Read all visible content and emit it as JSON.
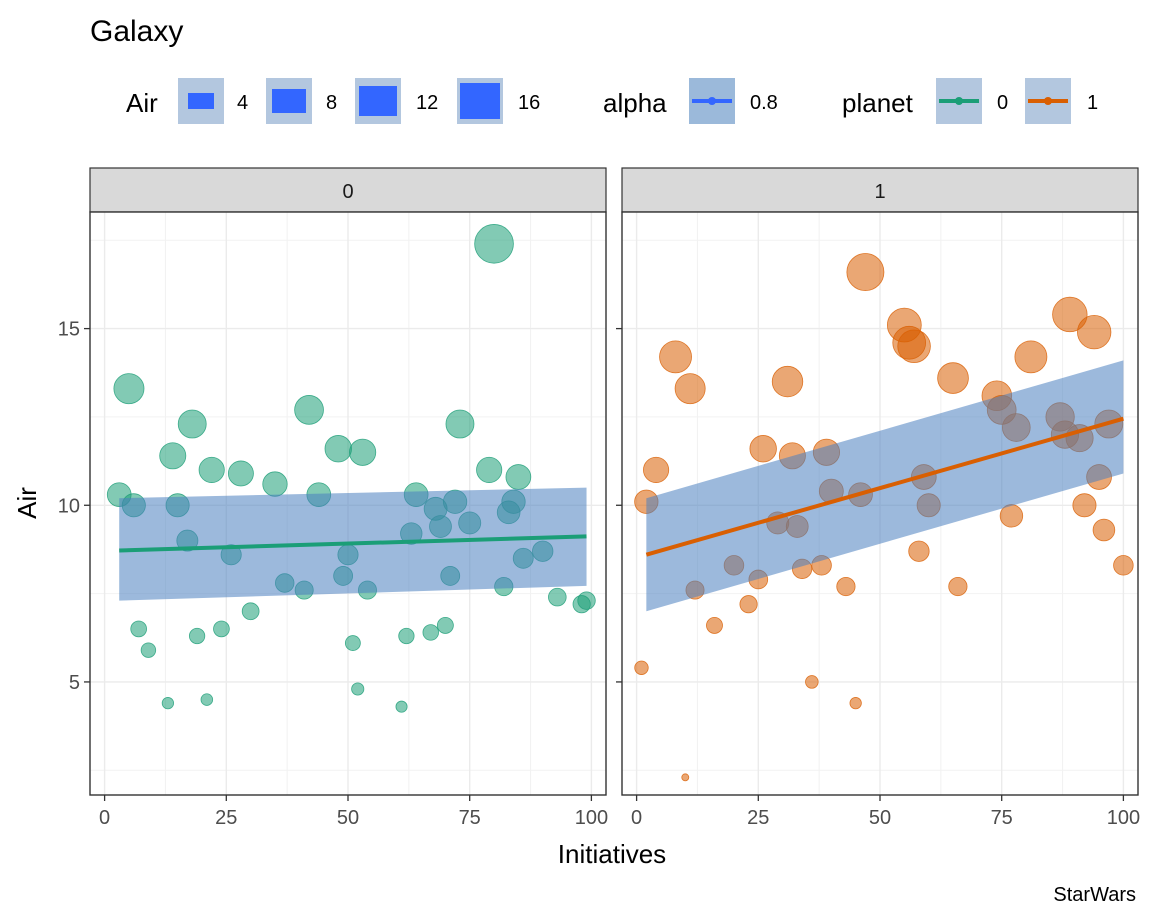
{
  "chart_data": {
    "type": "scatter",
    "title": "Galaxy",
    "caption": "StarWars",
    "xlabel": "Initiatives",
    "ylabel": "Air",
    "xlim": [
      -3,
      103
    ],
    "ylim": [
      1.8,
      18.3
    ],
    "xticks": [
      0,
      25,
      50,
      75,
      100
    ],
    "yticks": [
      5,
      10,
      15
    ],
    "grid": true,
    "legend_position": "top",
    "colors": {
      "planet_0": "#1b9e77",
      "planet_1": "#d95f02",
      "ribbon": "#4a7fbf",
      "size_key": "#3366ff"
    },
    "legend": {
      "size": {
        "title": "Air",
        "labels": [
          "4",
          "8",
          "12",
          "16"
        ]
      },
      "alpha": {
        "title": "alpha",
        "labels": [
          "0.8"
        ]
      },
      "color": {
        "title": "planet",
        "labels": [
          "0",
          "1"
        ]
      }
    },
    "panels": [
      {
        "strip": "0",
        "color": "#1b9e77",
        "fit": {
          "x": [
            3,
            99
          ],
          "y": [
            8.72,
            9.12
          ],
          "lower": [
            7.3,
            7.72
          ],
          "upper": [
            10.2,
            10.5
          ]
        },
        "points": [
          {
            "x": 3,
            "y": 10.3
          },
          {
            "x": 5,
            "y": 13.3
          },
          {
            "x": 6,
            "y": 10.0
          },
          {
            "x": 7,
            "y": 6.5
          },
          {
            "x": 9,
            "y": 5.9
          },
          {
            "x": 13,
            "y": 4.4
          },
          {
            "x": 14,
            "y": 11.4
          },
          {
            "x": 15,
            "y": 10.0
          },
          {
            "x": 17,
            "y": 9.0
          },
          {
            "x": 18,
            "y": 12.3
          },
          {
            "x": 19,
            "y": 6.3
          },
          {
            "x": 21,
            "y": 4.5
          },
          {
            "x": 22,
            "y": 11.0
          },
          {
            "x": 24,
            "y": 6.5
          },
          {
            "x": 26,
            "y": 8.6
          },
          {
            "x": 28,
            "y": 10.9
          },
          {
            "x": 30,
            "y": 7.0
          },
          {
            "x": 35,
            "y": 10.6
          },
          {
            "x": 37,
            "y": 7.8
          },
          {
            "x": 41,
            "y": 7.6
          },
          {
            "x": 42,
            "y": 12.7
          },
          {
            "x": 44,
            "y": 10.3
          },
          {
            "x": 48,
            "y": 11.6
          },
          {
            "x": 49,
            "y": 8.0
          },
          {
            "x": 50,
            "y": 8.6
          },
          {
            "x": 51,
            "y": 6.1
          },
          {
            "x": 52,
            "y": 4.8
          },
          {
            "x": 53,
            "y": 11.5
          },
          {
            "x": 54,
            "y": 7.6
          },
          {
            "x": 61,
            "y": 4.3
          },
          {
            "x": 62,
            "y": 6.3
          },
          {
            "x": 63,
            "y": 9.2
          },
          {
            "x": 64,
            "y": 10.3
          },
          {
            "x": 67,
            "y": 6.4
          },
          {
            "x": 68,
            "y": 9.9
          },
          {
            "x": 69,
            "y": 9.4
          },
          {
            "x": 70,
            "y": 6.6
          },
          {
            "x": 71,
            "y": 8.0
          },
          {
            "x": 72,
            "y": 10.1
          },
          {
            "x": 73,
            "y": 12.3
          },
          {
            "x": 75,
            "y": 9.5
          },
          {
            "x": 79,
            "y": 11.0
          },
          {
            "x": 80,
            "y": 17.4
          },
          {
            "x": 82,
            "y": 7.7
          },
          {
            "x": 83,
            "y": 9.8
          },
          {
            "x": 84,
            "y": 10.1
          },
          {
            "x": 85,
            "y": 10.8
          },
          {
            "x": 86,
            "y": 8.5
          },
          {
            "x": 90,
            "y": 8.7
          },
          {
            "x": 93,
            "y": 7.4
          },
          {
            "x": 98,
            "y": 7.2
          },
          {
            "x": 99,
            "y": 7.3
          }
        ]
      },
      {
        "strip": "1",
        "color": "#d95f02",
        "fit": {
          "x": [
            2,
            100
          ],
          "y": [
            8.6,
            12.45
          ],
          "lower": [
            7.0,
            10.9
          ],
          "upper": [
            10.2,
            14.1
          ]
        },
        "points": [
          {
            "x": 1,
            "y": 5.4
          },
          {
            "x": 2,
            "y": 10.1
          },
          {
            "x": 4,
            "y": 11.0
          },
          {
            "x": 8,
            "y": 14.2
          },
          {
            "x": 10,
            "y": 2.3
          },
          {
            "x": 11,
            "y": 13.3
          },
          {
            "x": 12,
            "y": 7.6
          },
          {
            "x": 16,
            "y": 6.6
          },
          {
            "x": 20,
            "y": 8.3
          },
          {
            "x": 23,
            "y": 7.2
          },
          {
            "x": 25,
            "y": 7.9
          },
          {
            "x": 26,
            "y": 11.6
          },
          {
            "x": 29,
            "y": 9.5
          },
          {
            "x": 31,
            "y": 13.5
          },
          {
            "x": 32,
            "y": 11.4
          },
          {
            "x": 33,
            "y": 9.4
          },
          {
            "x": 34,
            "y": 8.2
          },
          {
            "x": 36,
            "y": 5.0
          },
          {
            "x": 38,
            "y": 8.3
          },
          {
            "x": 39,
            "y": 11.5
          },
          {
            "x": 40,
            "y": 10.4
          },
          {
            "x": 43,
            "y": 7.7
          },
          {
            "x": 45,
            "y": 4.4
          },
          {
            "x": 46,
            "y": 10.3
          },
          {
            "x": 47,
            "y": 16.6
          },
          {
            "x": 55,
            "y": 15.1
          },
          {
            "x": 56,
            "y": 14.6
          },
          {
            "x": 57,
            "y": 14.5
          },
          {
            "x": 58,
            "y": 8.7
          },
          {
            "x": 59,
            "y": 10.8
          },
          {
            "x": 60,
            "y": 10.0
          },
          {
            "x": 65,
            "y": 13.6
          },
          {
            "x": 66,
            "y": 7.7
          },
          {
            "x": 74,
            "y": 13.1
          },
          {
            "x": 75,
            "y": 12.7
          },
          {
            "x": 77,
            "y": 9.7
          },
          {
            "x": 78,
            "y": 12.2
          },
          {
            "x": 81,
            "y": 14.2
          },
          {
            "x": 87,
            "y": 12.5
          },
          {
            "x": 88,
            "y": 12.0
          },
          {
            "x": 89,
            "y": 15.4
          },
          {
            "x": 91,
            "y": 11.9
          },
          {
            "x": 92,
            "y": 10.0
          },
          {
            "x": 94,
            "y": 14.9
          },
          {
            "x": 95,
            "y": 10.8
          },
          {
            "x": 96,
            "y": 9.3
          },
          {
            "x": 97,
            "y": 12.3
          },
          {
            "x": 100,
            "y": 8.3
          }
        ]
      }
    ]
  }
}
